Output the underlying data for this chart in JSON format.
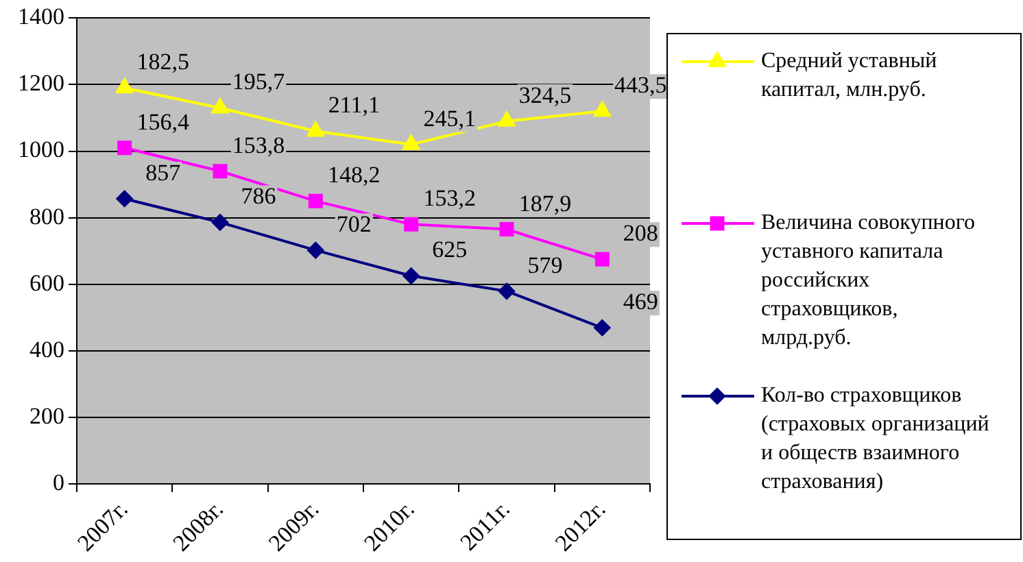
{
  "chart_data": {
    "type": "line",
    "categories": [
      "2007г.",
      "2008г.",
      "2009г.",
      "2010г.",
      "2011г.",
      "2012г."
    ],
    "ylim": [
      0,
      1400
    ],
    "yticks": [
      0,
      200,
      400,
      600,
      800,
      1000,
      1200,
      1400
    ],
    "grid": "y",
    "legend": "right",
    "series": [
      {
        "name": "Средний уставный капитал, млн.руб.",
        "color": "#ffff00",
        "marker": "triangle",
        "values": [
          1190,
          1130,
          1060,
          1020,
          1090,
          1120
        ]
      },
      {
        "name": "Величина совокупного уставного капитала российских страховщиков, млрд.руб.",
        "color": "#ff00ff",
        "marker": "square",
        "values": [
          1010,
          940,
          850,
          780,
          765,
          675
        ]
      },
      {
        "name": "Кол-во страховщиков (страховых организаций и обществ взаимного страхования)",
        "color": "#000080",
        "marker": "diamond",
        "values": [
          857,
          786,
          702,
          625,
          579,
          469
        ],
        "value_labels": [
          "857",
          "786",
          "702",
          "625",
          "579",
          "469"
        ]
      }
    ],
    "annotations": [
      {
        "text": "182,5",
        "x": "2007г.",
        "y": 1190
      },
      {
        "text": "195,7",
        "x": "2008г.",
        "y": 1130
      },
      {
        "text": "211,1",
        "x": "2009г.",
        "y": 1060
      },
      {
        "text": "245,1",
        "x": "2010г.",
        "y": 1020
      },
      {
        "text": "324,5",
        "x": "2011г.",
        "y": 1090
      },
      {
        "text": "443,5",
        "x": "2012г.",
        "y": 1120
      },
      {
        "text": "156,4",
        "x": "2007г.",
        "y": 1010
      },
      {
        "text": "153,8",
        "x": "2008г.",
        "y": 940
      },
      {
        "text": "148,2",
        "x": "2009г.",
        "y": 850
      },
      {
        "text": "153,2",
        "x": "2010г.",
        "y": 780
      },
      {
        "text": "187,9",
        "x": "2011г.",
        "y": 765
      },
      {
        "text": "208",
        "x": "2012г.",
        "y": 675
      }
    ]
  }
}
